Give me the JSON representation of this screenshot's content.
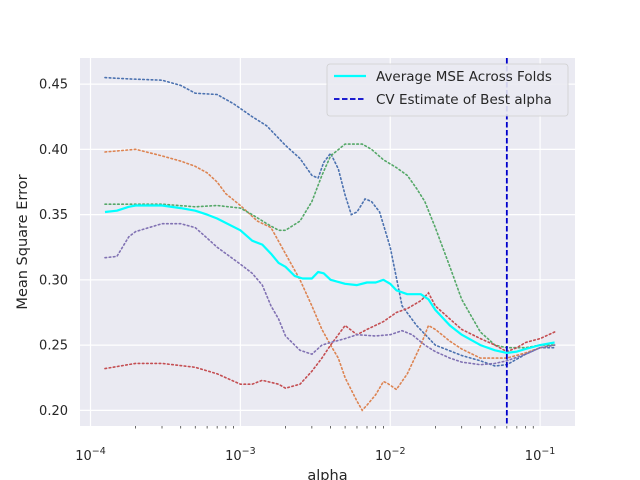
{
  "chart_data": {
    "type": "line",
    "xlabel": "alpha",
    "ylabel": "Mean Square Error",
    "xscale": "log",
    "xlim": [
      8.51e-05,
      0.171
    ],
    "ylim": [
      0.188,
      0.47
    ],
    "grid": true,
    "legend_position": "top-right",
    "x_ticks": [
      {
        "value": 0.0001,
        "base": "10",
        "exp": "−4"
      },
      {
        "value": 0.001,
        "base": "10",
        "exp": "−3"
      },
      {
        "value": 0.01,
        "base": "10",
        "exp": "−2"
      },
      {
        "value": 0.1,
        "base": "10",
        "exp": "−1"
      }
    ],
    "y_ticks": [
      {
        "value": 0.2,
        "label": "0.20"
      },
      {
        "value": 0.25,
        "label": "0.25"
      },
      {
        "value": 0.3,
        "label": "0.30"
      },
      {
        "value": 0.35,
        "label": "0.35"
      },
      {
        "value": 0.4,
        "label": "0.40"
      },
      {
        "value": 0.45,
        "label": "0.45"
      }
    ],
    "folds": [
      {
        "color": "#4c72b0",
        "points": [
          [
            0.000125,
            0.455
          ],
          [
            0.00018,
            0.454
          ],
          [
            0.0003,
            0.453
          ],
          [
            0.0004,
            0.449
          ],
          [
            0.0005,
            0.443
          ],
          [
            0.0007,
            0.442
          ],
          [
            0.0009,
            0.435
          ],
          [
            0.0012,
            0.425
          ],
          [
            0.0015,
            0.418
          ],
          [
            0.002,
            0.403
          ],
          [
            0.0025,
            0.393
          ],
          [
            0.003,
            0.38
          ],
          [
            0.0033,
            0.378
          ],
          [
            0.0036,
            0.39
          ],
          [
            0.004,
            0.397
          ],
          [
            0.0045,
            0.385
          ],
          [
            0.005,
            0.365
          ],
          [
            0.0055,
            0.35
          ],
          [
            0.006,
            0.352
          ],
          [
            0.0068,
            0.362
          ],
          [
            0.0075,
            0.36
          ],
          [
            0.0085,
            0.352
          ],
          [
            0.01,
            0.325
          ],
          [
            0.012,
            0.28
          ],
          [
            0.015,
            0.265
          ],
          [
            0.02,
            0.25
          ],
          [
            0.03,
            0.242
          ],
          [
            0.04,
            0.238
          ],
          [
            0.05,
            0.234
          ],
          [
            0.06,
            0.235
          ],
          [
            0.08,
            0.243
          ],
          [
            0.1,
            0.248
          ],
          [
            0.125,
            0.248
          ]
        ]
      },
      {
        "color": "#dd8452",
        "points": [
          [
            0.000125,
            0.398
          ],
          [
            0.0002,
            0.4
          ],
          [
            0.0003,
            0.395
          ],
          [
            0.0004,
            0.391
          ],
          [
            0.0005,
            0.387
          ],
          [
            0.0006,
            0.382
          ],
          [
            0.0007,
            0.375
          ],
          [
            0.0008,
            0.366
          ],
          [
            0.001,
            0.357
          ],
          [
            0.0013,
            0.345
          ],
          [
            0.0016,
            0.34
          ],
          [
            0.002,
            0.32
          ],
          [
            0.0025,
            0.3
          ],
          [
            0.003,
            0.28
          ],
          [
            0.0035,
            0.262
          ],
          [
            0.004,
            0.25
          ],
          [
            0.0045,
            0.24
          ],
          [
            0.005,
            0.225
          ],
          [
            0.006,
            0.207
          ],
          [
            0.0065,
            0.2
          ],
          [
            0.007,
            0.204
          ],
          [
            0.008,
            0.212
          ],
          [
            0.009,
            0.222
          ],
          [
            0.0095,
            0.221
          ],
          [
            0.011,
            0.216
          ],
          [
            0.013,
            0.228
          ],
          [
            0.016,
            0.25
          ],
          [
            0.018,
            0.265
          ],
          [
            0.02,
            0.262
          ],
          [
            0.025,
            0.253
          ],
          [
            0.03,
            0.247
          ],
          [
            0.04,
            0.24
          ],
          [
            0.06,
            0.24
          ],
          [
            0.08,
            0.244
          ],
          [
            0.1,
            0.248
          ],
          [
            0.125,
            0.25
          ]
        ]
      },
      {
        "color": "#55a868",
        "points": [
          [
            0.000125,
            0.358
          ],
          [
            0.0002,
            0.358
          ],
          [
            0.0003,
            0.358
          ],
          [
            0.0005,
            0.356
          ],
          [
            0.0007,
            0.357
          ],
          [
            0.001,
            0.355
          ],
          [
            0.0012,
            0.35
          ],
          [
            0.0015,
            0.343
          ],
          [
            0.0018,
            0.338
          ],
          [
            0.002,
            0.338
          ],
          [
            0.0025,
            0.345
          ],
          [
            0.003,
            0.36
          ],
          [
            0.0035,
            0.38
          ],
          [
            0.004,
            0.395
          ],
          [
            0.005,
            0.404
          ],
          [
            0.0065,
            0.404
          ],
          [
            0.0075,
            0.4
          ],
          [
            0.009,
            0.392
          ],
          [
            0.011,
            0.386
          ],
          [
            0.013,
            0.38
          ],
          [
            0.015,
            0.37
          ],
          [
            0.017,
            0.36
          ],
          [
            0.02,
            0.34
          ],
          [
            0.025,
            0.31
          ],
          [
            0.03,
            0.285
          ],
          [
            0.04,
            0.26
          ],
          [
            0.05,
            0.25
          ],
          [
            0.06,
            0.248
          ],
          [
            0.08,
            0.248
          ],
          [
            0.1,
            0.25
          ],
          [
            0.125,
            0.25
          ]
        ]
      },
      {
        "color": "#c44e52",
        "points": [
          [
            0.000125,
            0.232
          ],
          [
            0.0002,
            0.236
          ],
          [
            0.0003,
            0.236
          ],
          [
            0.0005,
            0.233
          ],
          [
            0.0007,
            0.228
          ],
          [
            0.001,
            0.22
          ],
          [
            0.0012,
            0.22
          ],
          [
            0.0014,
            0.223
          ],
          [
            0.0018,
            0.22
          ],
          [
            0.002,
            0.217
          ],
          [
            0.0025,
            0.22
          ],
          [
            0.003,
            0.23
          ],
          [
            0.0035,
            0.24
          ],
          [
            0.004,
            0.25
          ],
          [
            0.005,
            0.265
          ],
          [
            0.006,
            0.258
          ],
          [
            0.007,
            0.262
          ],
          [
            0.009,
            0.268
          ],
          [
            0.011,
            0.275
          ],
          [
            0.013,
            0.278
          ],
          [
            0.016,
            0.284
          ],
          [
            0.018,
            0.29
          ],
          [
            0.02,
            0.28
          ],
          [
            0.025,
            0.27
          ],
          [
            0.03,
            0.262
          ],
          [
            0.04,
            0.255
          ],
          [
            0.05,
            0.25
          ],
          [
            0.06,
            0.245
          ],
          [
            0.07,
            0.248
          ],
          [
            0.08,
            0.252
          ],
          [
            0.1,
            0.255
          ],
          [
            0.125,
            0.26
          ]
        ]
      },
      {
        "color": "#8172b3",
        "points": [
          [
            0.000125,
            0.317
          ],
          [
            0.00015,
            0.318
          ],
          [
            0.00018,
            0.333
          ],
          [
            0.0002,
            0.337
          ],
          [
            0.0003,
            0.343
          ],
          [
            0.0004,
            0.343
          ],
          [
            0.0005,
            0.34
          ],
          [
            0.0006,
            0.332
          ],
          [
            0.0007,
            0.325
          ],
          [
            0.001,
            0.312
          ],
          [
            0.0012,
            0.305
          ],
          [
            0.0014,
            0.296
          ],
          [
            0.0016,
            0.28
          ],
          [
            0.0018,
            0.27
          ],
          [
            0.002,
            0.257
          ],
          [
            0.0025,
            0.246
          ],
          [
            0.003,
            0.243
          ],
          [
            0.0035,
            0.25
          ],
          [
            0.004,
            0.252
          ],
          [
            0.005,
            0.255
          ],
          [
            0.006,
            0.258
          ],
          [
            0.008,
            0.257
          ],
          [
            0.01,
            0.258
          ],
          [
            0.012,
            0.261
          ],
          [
            0.014,
            0.258
          ],
          [
            0.017,
            0.25
          ],
          [
            0.02,
            0.245
          ],
          [
            0.025,
            0.24
          ],
          [
            0.03,
            0.237
          ],
          [
            0.04,
            0.235
          ],
          [
            0.05,
            0.236
          ],
          [
            0.06,
            0.238
          ],
          [
            0.08,
            0.243
          ],
          [
            0.1,
            0.248
          ],
          [
            0.125,
            0.25
          ]
        ]
      }
    ],
    "series": [
      {
        "name": "Average MSE Across Folds",
        "color": "#00ffff",
        "points": [
          [
            0.000125,
            0.352
          ],
          [
            0.00015,
            0.353
          ],
          [
            0.00018,
            0.356
          ],
          [
            0.0002,
            0.357
          ],
          [
            0.0003,
            0.357
          ],
          [
            0.0004,
            0.355
          ],
          [
            0.0005,
            0.353
          ],
          [
            0.0006,
            0.35
          ],
          [
            0.0007,
            0.347
          ],
          [
            0.001,
            0.338
          ],
          [
            0.0012,
            0.33
          ],
          [
            0.0014,
            0.327
          ],
          [
            0.0016,
            0.32
          ],
          [
            0.0018,
            0.313
          ],
          [
            0.002,
            0.31
          ],
          [
            0.0023,
            0.303
          ],
          [
            0.0026,
            0.301
          ],
          [
            0.003,
            0.301
          ],
          [
            0.0033,
            0.306
          ],
          [
            0.0036,
            0.305
          ],
          [
            0.004,
            0.3
          ],
          [
            0.005,
            0.297
          ],
          [
            0.006,
            0.296
          ],
          [
            0.007,
            0.298
          ],
          [
            0.008,
            0.298
          ],
          [
            0.009,
            0.3
          ],
          [
            0.01,
            0.297
          ],
          [
            0.011,
            0.292
          ],
          [
            0.013,
            0.289
          ],
          [
            0.016,
            0.289
          ],
          [
            0.018,
            0.285
          ],
          [
            0.02,
            0.277
          ],
          [
            0.025,
            0.265
          ],
          [
            0.03,
            0.258
          ],
          [
            0.04,
            0.25
          ],
          [
            0.05,
            0.246
          ],
          [
            0.06,
            0.244
          ],
          [
            0.07,
            0.245
          ],
          [
            0.08,
            0.247
          ],
          [
            0.1,
            0.25
          ],
          [
            0.125,
            0.252
          ]
        ]
      },
      {
        "name": "CV Estimate of Best alpha",
        "color": "#0000cc",
        "x": 0.06
      }
    ]
  }
}
